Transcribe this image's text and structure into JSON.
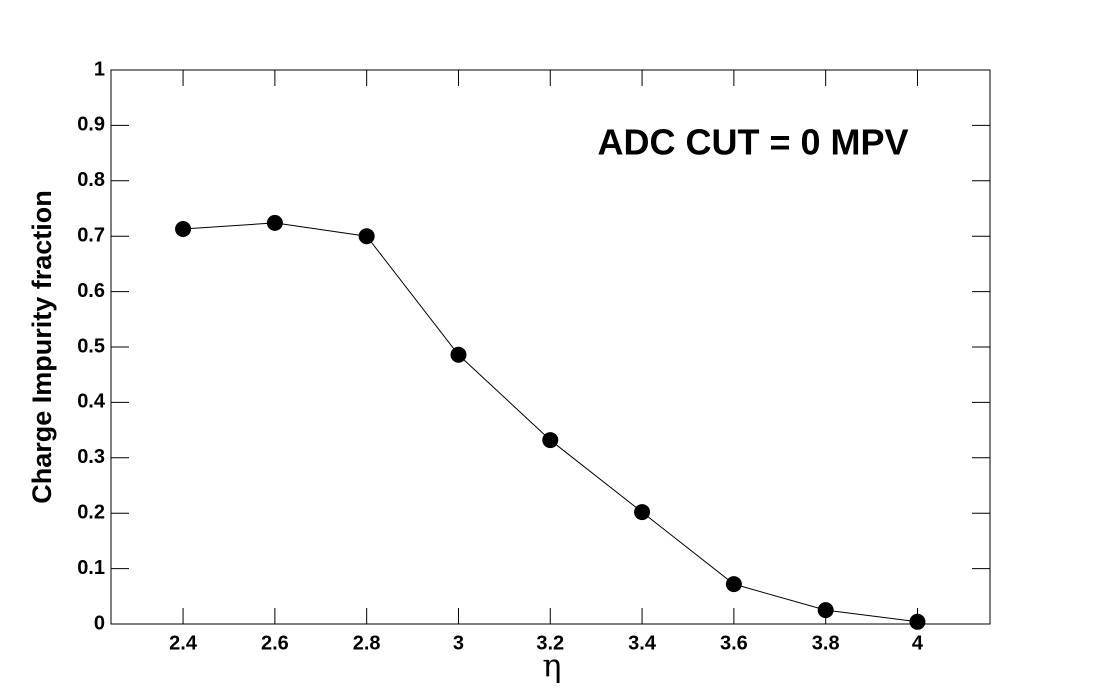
{
  "chart_data": {
    "type": "line",
    "y_label": "Charge Impurity fraction",
    "x_label": "η",
    "annotation": "ADC CUT = 0 MPV",
    "x": [
      2.4,
      2.6,
      2.8,
      3.0,
      3.2,
      3.4,
      3.6,
      3.8,
      4.0
    ],
    "series": [
      {
        "color": "#000000",
        "values": [
          0.713,
          0.724,
          0.7,
          0.486,
          0.332,
          0.202,
          0.072,
          0.025,
          0.004
        ]
      }
    ],
    "xlim": [
      2.243,
      4.158
    ],
    "ylim": [
      0,
      1
    ],
    "xticks": [
      2.4,
      2.6,
      2.8,
      3,
      3.2,
      3.4,
      3.6,
      3.8,
      4
    ],
    "yticks": [
      0,
      0.1,
      0.2,
      0.3,
      0.4,
      0.5,
      0.6,
      0.7,
      0.8,
      0.9,
      1
    ]
  }
}
